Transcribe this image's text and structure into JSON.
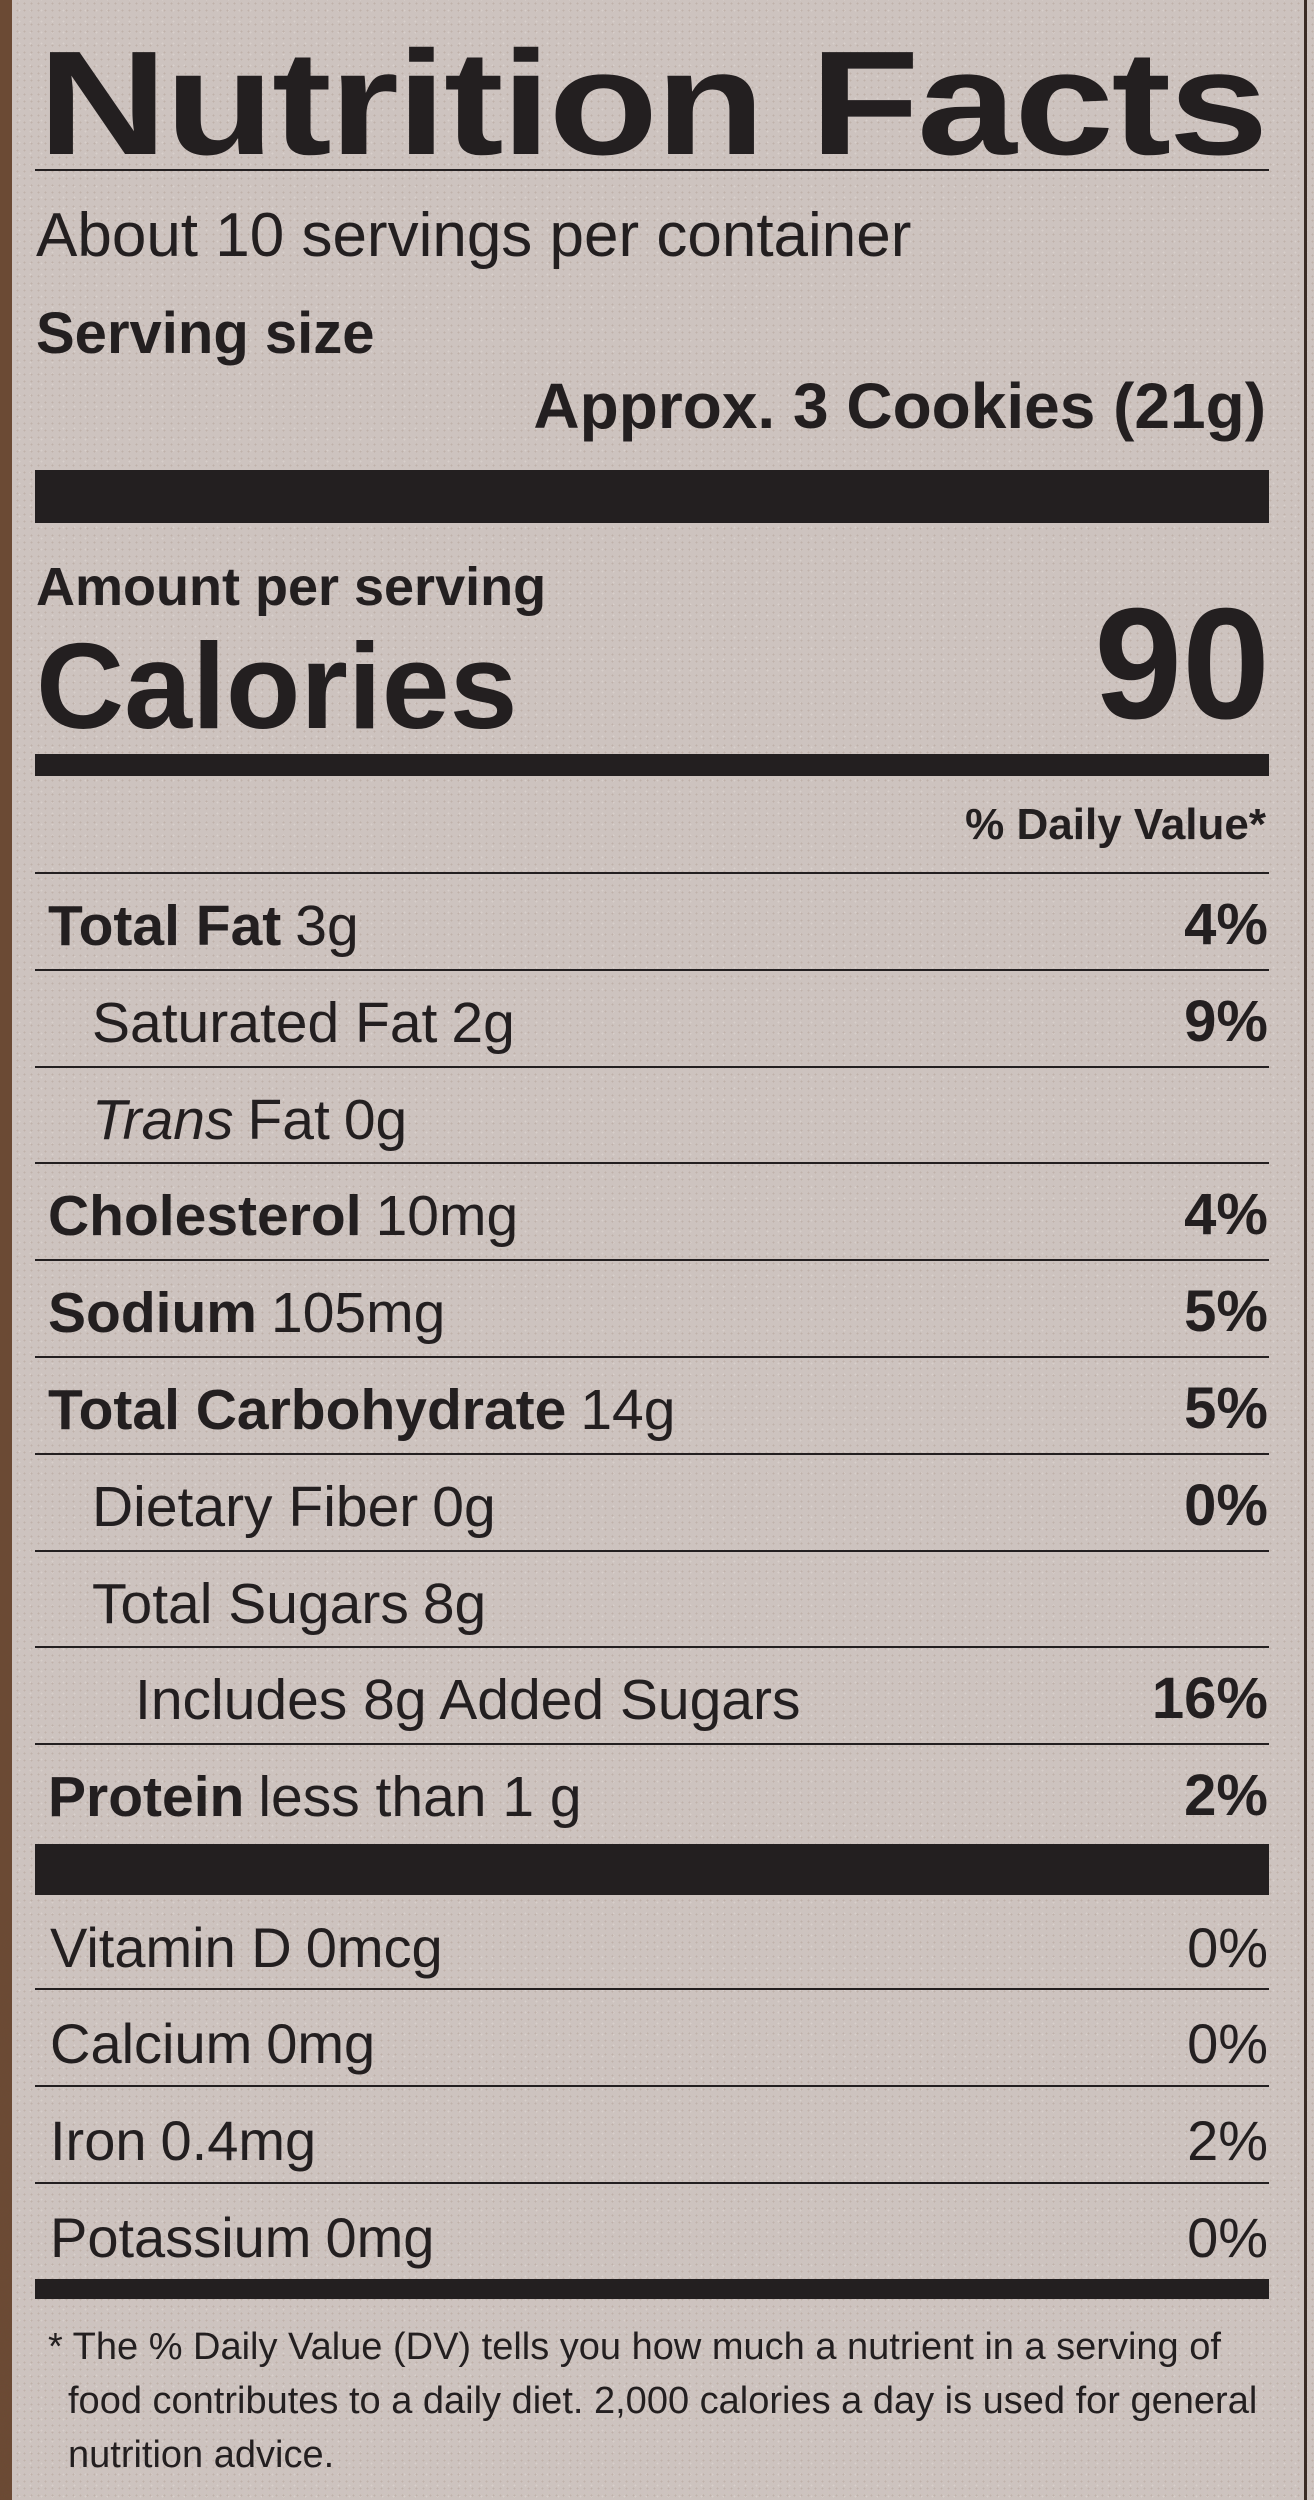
{
  "title": "Nutrition Facts",
  "servings": "About 10 servings per container",
  "serving_size_label": "Serving size",
  "serving_size": "Approx. 3 Cookies (21g)",
  "amount_per_serving": "Amount per serving",
  "calories_label": "Calories",
  "calories": "90",
  "dv_header": "% Daily Value*",
  "nutrients": [
    {
      "name": "Total Fat",
      "amount": "3g",
      "dv": "4%"
    },
    {
      "name": "Saturated Fat",
      "amount": "2g",
      "dv": "9%"
    },
    {
      "name_italic": "Trans",
      "name": "Fat",
      "amount": "0g"
    },
    {
      "name": "Cholesterol",
      "amount": "10mg",
      "dv": "4%"
    },
    {
      "name": "Sodium",
      "amount": "105mg",
      "dv": "5%"
    },
    {
      "name": "Total Carbohydrate",
      "amount": "14g",
      "dv": "5%"
    },
    {
      "name": "Dietary Fiber",
      "amount": "0g",
      "dv": "0%"
    },
    {
      "name": "Total Sugars",
      "amount": "8g"
    },
    {
      "name": "Includes 8g Added Sugars",
      "dv": "16%"
    },
    {
      "name": "Protein",
      "amount": "less than 1 g",
      "dv": "2%"
    }
  ],
  "vitamins": [
    {
      "name": "Vitamin D",
      "amount": "0mcg",
      "dv": "0%"
    },
    {
      "name": "Calcium",
      "amount": "0mg",
      "dv": "0%"
    },
    {
      "name": "Iron",
      "amount": "0.4mg",
      "dv": "2%"
    },
    {
      "name": "Potassium",
      "amount": "0mg",
      "dv": "0%"
    }
  ],
  "footnote": "* The % Daily Value (DV) tells you how much a nutrient in a serving of food contributes to a daily diet. 2,000 calories a day is used for general nutrition advice."
}
